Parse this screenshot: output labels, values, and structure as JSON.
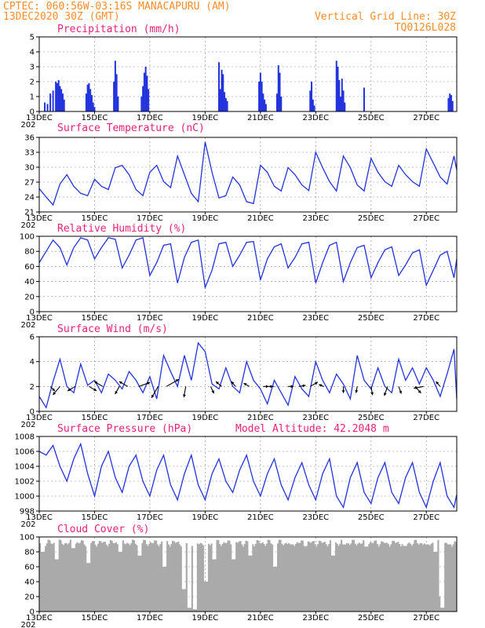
{
  "header": {
    "line1": "CPTEC:    060:56W-03:16S   MANACAPURU (AM)",
    "line2": "13DEC2020 30Z (GMT)",
    "vertical_grid": "Vertical Grid Line: 30Z",
    "code": "TQ0126L028"
  },
  "colors": {
    "header": "#ff8c28",
    "title": "#e8207a",
    "series": "#2233dd",
    "cloud": "#aaaaaa"
  },
  "x_axis": {
    "start_day": 13,
    "end_day": 28.1,
    "ticks": [
      {
        "day": 13,
        "label": "13DEC"
      },
      {
        "day": 15,
        "label": "15DEC"
      },
      {
        "day": 17,
        "label": "17DEC"
      },
      {
        "day": 19,
        "label": "19DEC"
      },
      {
        "day": 21,
        "label": "21DEC"
      },
      {
        "day": 23,
        "label": "23DEC"
      },
      {
        "day": 25,
        "label": "25DEC"
      },
      {
        "day": 27,
        "label": "27DEC"
      }
    ],
    "corner_label": "202"
  },
  "chart_data": [
    {
      "id": "precip",
      "type": "bar",
      "title": "Precipitation  (mm/h)",
      "ylim": [
        0,
        5
      ],
      "y_ticks": [
        "0",
        "1",
        "2",
        "3",
        "4",
        "5"
      ],
      "x": [
        13.2,
        13.3,
        13.4,
        13.5,
        13.6,
        13.65,
        13.7,
        13.75,
        13.8,
        13.85,
        13.9,
        14.7,
        14.75,
        14.8,
        14.85,
        14.9,
        14.95,
        15.0,
        15.7,
        15.75,
        15.8,
        15.85,
        16.7,
        16.75,
        16.8,
        16.85,
        16.9,
        16.95,
        19.5,
        19.55,
        19.6,
        19.65,
        19.7,
        19.75,
        19.8,
        20.95,
        21.0,
        21.05,
        21.1,
        21.15,
        21.2,
        21.6,
        21.65,
        21.7,
        21.75,
        22.8,
        22.85,
        22.9,
        22.95,
        23.75,
        23.8,
        23.85,
        23.9,
        23.95,
        24.0,
        24.05,
        24.75,
        27.8,
        27.85,
        27.9,
        27.95
      ],
      "values": [
        0.6,
        0.5,
        1.2,
        1.4,
        2.0,
        1.9,
        2.1,
        1.7,
        1.5,
        1.2,
        0.8,
        1.2,
        1.8,
        1.9,
        1.5,
        1.1,
        0.6,
        0.3,
        2.0,
        3.4,
        2.5,
        1.0,
        1.0,
        1.7,
        2.6,
        3.0,
        2.4,
        1.5,
        3.3,
        1.5,
        2.8,
        2.5,
        1.3,
        0.9,
        0.7,
        2.0,
        2.6,
        2.0,
        1.2,
        0.8,
        0.5,
        1.2,
        3.1,
        2.6,
        1.0,
        1.4,
        2.0,
        0.8,
        0.4,
        3.4,
        3.0,
        2.1,
        1.0,
        2.2,
        1.4,
        0.6,
        1.6,
        0.9,
        1.2,
        1.1,
        0.7
      ]
    },
    {
      "id": "temp",
      "type": "line",
      "title": "Surface Temperature (nC)",
      "ylim": [
        21,
        37
      ],
      "y_ticks": [
        "21",
        "24",
        "27",
        "30",
        "33",
        "36"
      ],
      "x": [
        13.0,
        13.25,
        13.5,
        13.75,
        14.0,
        14.25,
        14.5,
        14.75,
        15.0,
        15.25,
        15.5,
        15.75,
        16.0,
        16.25,
        16.5,
        16.75,
        17.0,
        17.25,
        17.5,
        17.75,
        18.0,
        18.25,
        18.5,
        18.75,
        19.0,
        19.25,
        19.5,
        19.75,
        20.0,
        20.25,
        20.5,
        20.75,
        21.0,
        21.25,
        21.5,
        21.75,
        22.0,
        22.25,
        22.5,
        22.75,
        23.0,
        23.25,
        23.5,
        23.75,
        24.0,
        24.25,
        24.5,
        24.75,
        25.0,
        25.25,
        25.5,
        25.75,
        26.0,
        26.25,
        26.5,
        26.75,
        27.0,
        27.25,
        27.5,
        27.75,
        28.0,
        28.1
      ],
      "values": [
        26,
        24.2,
        22.5,
        27,
        29,
        26.5,
        25,
        24.5,
        28,
        26.5,
        25.8,
        30.5,
        31,
        29,
        25.8,
        24.5,
        29.5,
        31,
        27.5,
        26.2,
        33,
        29,
        25,
        23.2,
        36,
        29.5,
        24,
        24.5,
        28.5,
        26.8,
        23.2,
        22.8,
        31,
        29.5,
        26.5,
        25.5,
        30.5,
        29,
        26.8,
        25.6,
        33.8,
        30.5,
        27.5,
        25.5,
        33,
        30.5,
        26.8,
        25.5,
        32.5,
        29.5,
        27.5,
        26.5,
        31,
        29,
        27.5,
        26.5,
        34.5,
        31.5,
        28.5,
        27,
        33,
        30
      ]
    },
    {
      "id": "rh",
      "type": "line",
      "title": "Relative Humidity (%)",
      "ylim": [
        0,
        100
      ],
      "y_ticks": [
        "0",
        "20",
        "40",
        "60",
        "80",
        "100"
      ],
      "x": [
        13.0,
        13.25,
        13.5,
        13.75,
        14.0,
        14.25,
        14.5,
        14.75,
        15.0,
        15.25,
        15.5,
        15.75,
        16.0,
        16.25,
        16.5,
        16.75,
        17.0,
        17.25,
        17.5,
        17.75,
        18.0,
        18.25,
        18.5,
        18.75,
        19.0,
        19.25,
        19.5,
        19.75,
        20.0,
        20.25,
        20.5,
        20.75,
        21.0,
        21.25,
        21.5,
        21.75,
        22.0,
        22.25,
        22.5,
        22.75,
        23.0,
        23.25,
        23.5,
        23.75,
        24.0,
        24.25,
        24.5,
        24.75,
        25.0,
        25.25,
        25.5,
        25.75,
        26.0,
        26.25,
        26.5,
        26.75,
        27.0,
        27.25,
        27.5,
        27.75,
        28.0,
        28.1
      ],
      "values": [
        65,
        80,
        95,
        85,
        62,
        85,
        98,
        95,
        70,
        85,
        98,
        96,
        58,
        75,
        95,
        98,
        48,
        65,
        88,
        90,
        38,
        72,
        92,
        95,
        32,
        55,
        90,
        92,
        60,
        75,
        92,
        93,
        42,
        70,
        86,
        90,
        58,
        72,
        90,
        92,
        38,
        65,
        88,
        92,
        40,
        65,
        85,
        88,
        45,
        65,
        82,
        86,
        48,
        62,
        78,
        82,
        35,
        55,
        75,
        80,
        45,
        70
      ]
    },
    {
      "id": "wind",
      "type": "line",
      "title": "Surface Wind (m/s)",
      "ylim": [
        0,
        6
      ],
      "y_ticks": [
        "0",
        "2",
        "4",
        "6"
      ],
      "x": [
        13.0,
        13.25,
        13.5,
        13.75,
        14.0,
        14.25,
        14.5,
        14.75,
        15.0,
        15.25,
        15.5,
        15.75,
        16.0,
        16.25,
        16.5,
        16.75,
        17.0,
        17.25,
        17.5,
        17.75,
        18.0,
        18.25,
        18.5,
        18.75,
        19.0,
        19.25,
        19.5,
        19.75,
        20.0,
        20.25,
        20.5,
        20.75,
        21.0,
        21.25,
        21.5,
        21.75,
        22.0,
        22.25,
        22.5,
        22.75,
        23.0,
        23.25,
        23.5,
        23.75,
        24.0,
        24.25,
        24.5,
        24.75,
        25.0,
        25.25,
        25.5,
        25.75,
        26.0,
        26.25,
        26.5,
        26.75,
        27.0,
        27.25,
        27.5,
        27.75,
        28.0,
        28.1
      ],
      "values": [
        1.2,
        0.3,
        2.4,
        4.2,
        2.0,
        1.5,
        3.8,
        2.1,
        2.5,
        1.5,
        3.0,
        2.5,
        1.8,
        3.2,
        2.5,
        1.5,
        2.8,
        1.0,
        4.5,
        3.2,
        2.0,
        4.5,
        2.5,
        5.5,
        4.8,
        2.2,
        1.8,
        3.5,
        2.0,
        1.5,
        4.0,
        2.5,
        1.8,
        0.6,
        2.5,
        1.5,
        0.5,
        2.8,
        1.8,
        1.2,
        4.0,
        2.5,
        1.5,
        3.0,
        2.2,
        1.0,
        4.5,
        2.5,
        1.8,
        3.5,
        2.0,
        1.5,
        4.2,
        2.5,
        3.5,
        2.2,
        3.5,
        2.5,
        1.2,
        3.0,
        5.0,
        1.0
      ]
    },
    {
      "id": "pressure",
      "type": "line",
      "title": "Surface Pressure (hPa)",
      "ylim": [
        998,
        1008
      ],
      "y_ticks": [
        "998",
        "1000",
        "1002",
        "1004",
        "1006",
        "1008"
      ],
      "x": [
        13.0,
        13.25,
        13.5,
        13.75,
        14.0,
        14.25,
        14.5,
        14.75,
        15.0,
        15.25,
        15.5,
        15.75,
        16.0,
        16.25,
        16.5,
        16.75,
        17.0,
        17.25,
        17.5,
        17.75,
        18.0,
        18.25,
        18.5,
        18.75,
        19.0,
        19.25,
        19.5,
        19.75,
        20.0,
        20.25,
        20.5,
        20.75,
        21.0,
        21.25,
        21.5,
        21.75,
        22.0,
        22.25,
        22.5,
        22.75,
        23.0,
        23.25,
        23.5,
        23.75,
        24.0,
        24.25,
        24.5,
        24.75,
        25.0,
        25.25,
        25.5,
        25.75,
        26.0,
        26.25,
        26.5,
        26.75,
        27.0,
        27.25,
        27.5,
        27.75,
        28.0,
        28.1
      ],
      "values": [
        1006,
        1005.5,
        1006.8,
        1004,
        1002,
        1005,
        1007,
        1003,
        1000,
        1004,
        1006,
        1002.5,
        1000.5,
        1004,
        1005.5,
        1002,
        1000,
        1003.5,
        1005.5,
        1001.5,
        999.5,
        1003,
        1005.5,
        1001.5,
        999.5,
        1003,
        1005,
        1002,
        1000.5,
        1003.5,
        1005.5,
        1002,
        1000,
        1003,
        1005,
        1001.5,
        999.5,
        1002.5,
        1004.5,
        1001.5,
        999.5,
        1003,
        1005,
        1000,
        998.5,
        1002.5,
        1004.5,
        1000.5,
        999,
        1002.5,
        1004.5,
        1000.5,
        999,
        1002.5,
        1004.5,
        1000.5,
        998.5,
        1002,
        1004.5,
        1000,
        998.5,
        1000.2
      ]
    },
    {
      "id": "cloud",
      "type": "bar",
      "title": "Cloud Cover (%)",
      "ylim": [
        0,
        100
      ],
      "y_ticks": [
        "0",
        "20",
        "40",
        "60",
        "80",
        "100"
      ],
      "base": 92,
      "dips": [
        [
          13.1,
          80
        ],
        [
          13.6,
          70
        ],
        [
          14.2,
          85
        ],
        [
          14.75,
          65
        ],
        [
          15.9,
          80
        ],
        [
          16.6,
          75
        ],
        [
          17.5,
          60
        ],
        [
          18.2,
          30
        ],
        [
          18.4,
          5
        ],
        [
          18.6,
          3
        ],
        [
          19.0,
          40
        ],
        [
          19.3,
          70
        ],
        [
          20.0,
          70
        ],
        [
          20.6,
          75
        ],
        [
          21.5,
          60
        ],
        [
          22.1,
          90
        ],
        [
          22.6,
          88
        ],
        [
          23.6,
          75
        ],
        [
          24.0,
          90
        ],
        [
          24.8,
          87
        ],
        [
          25.5,
          92
        ],
        [
          26.2,
          88
        ],
        [
          27.0,
          90
        ],
        [
          27.3,
          80
        ],
        [
          27.5,
          20
        ],
        [
          27.55,
          5
        ],
        [
          27.8,
          90
        ]
      ]
    }
  ],
  "annotations": {
    "model_altitude": "Model Altitude: 42.2048  m"
  },
  "wind_arrows": [
    {
      "day": 13.4,
      "dir": 135,
      "len": 0.6
    },
    {
      "day": 13.75,
      "dir": 220,
      "len": 1.0
    },
    {
      "day": 14.3,
      "dir": 240,
      "len": 0.8
    },
    {
      "day": 14.8,
      "dir": 120,
      "len": 0.8
    },
    {
      "day": 15.3,
      "dir": 300,
      "len": 0.9
    },
    {
      "day": 15.9,
      "dir": 210,
      "len": 0.8
    },
    {
      "day": 16.2,
      "dir": 300,
      "len": 0.9
    },
    {
      "day": 16.6,
      "dir": 70,
      "len": 1.1
    },
    {
      "day": 17.3,
      "dir": 210,
      "len": 1.2
    },
    {
      "day": 17.6,
      "dir": 60,
      "len": 1.3
    },
    {
      "day": 18.3,
      "dir": 190,
      "len": 1.0
    },
    {
      "day": 19.2,
      "dir": 155,
      "len": 0.7
    },
    {
      "day": 19.6,
      "dir": 310,
      "len": 0.7
    },
    {
      "day": 20.1,
      "dir": 320,
      "len": 0.6
    },
    {
      "day": 20.6,
      "dir": 300,
      "len": 0.6
    },
    {
      "day": 21.1,
      "dir": 90,
      "len": 0.5
    },
    {
      "day": 21.5,
      "dir": 270,
      "len": 0.5
    },
    {
      "day": 22.0,
      "dir": 90,
      "len": 0.5
    },
    {
      "day": 22.4,
      "dir": 80,
      "len": 0.6
    },
    {
      "day": 22.8,
      "dir": 60,
      "len": 0.8
    },
    {
      "day": 23.3,
      "dir": 290,
      "len": 0.5
    },
    {
      "day": 24.0,
      "dir": 180,
      "len": 0.6
    },
    {
      "day": 24.5,
      "dir": 190,
      "len": 0.6
    },
    {
      "day": 25.0,
      "dir": 170,
      "len": 0.8
    },
    {
      "day": 25.6,
      "dir": 200,
      "len": 0.9
    },
    {
      "day": 26.0,
      "dir": 160,
      "len": 0.7
    },
    {
      "day": 26.6,
      "dir": 140,
      "len": 0.8
    },
    {
      "day": 26.9,
      "dir": 260,
      "len": 0.9
    },
    {
      "day": 27.5,
      "dir": 320,
      "len": 0.6
    }
  ]
}
